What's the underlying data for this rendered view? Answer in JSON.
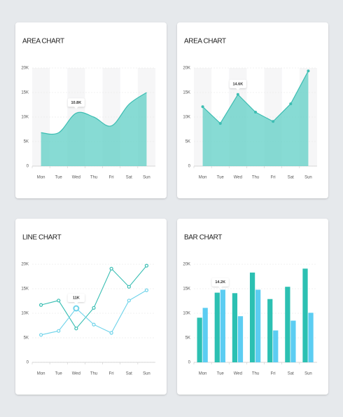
{
  "chart_data": [
    {
      "type": "area",
      "title": "AREA CHART",
      "smooth": true,
      "bands": true,
      "grid": true,
      "categories": [
        "Mon",
        "Tue",
        "Wed",
        "Thu",
        "Fri",
        "Sat",
        "Sun"
      ],
      "values": [
        6800,
        6800,
        10800,
        10000,
        8200,
        12600,
        15000
      ],
      "value_labels": [
        null,
        null,
        "10.8K",
        null,
        null,
        null,
        null
      ],
      "color": "#5fcfc6",
      "ylim": [
        0,
        20000
      ],
      "yticks": [
        0,
        {
          "value": 5000,
          "label": "5K"
        },
        {
          "value": 10000,
          "label": "10K"
        },
        {
          "value": 15000,
          "label": "15K"
        },
        {
          "value": 20000,
          "label": "20K"
        }
      ]
    },
    {
      "type": "area",
      "title": "AREA CHART",
      "smooth": false,
      "markers": true,
      "bands": true,
      "grid": true,
      "categories": [
        "Mon",
        "Tue",
        "Wed",
        "Thu",
        "Fri",
        "Sat",
        "Sun"
      ],
      "values": [
        12100,
        8700,
        14600,
        11000,
        9100,
        12700,
        19400
      ],
      "value_labels": [
        null,
        null,
        "14.6K",
        null,
        null,
        null,
        null
      ],
      "color": "#5fcfc6",
      "ylim": [
        0,
        20000
      ],
      "yticks": [
        0,
        {
          "value": 5000,
          "label": "5K"
        },
        {
          "value": 10000,
          "label": "10K"
        },
        {
          "value": 15000,
          "label": "15K"
        },
        {
          "value": 20000,
          "label": "20K"
        }
      ]
    },
    {
      "type": "line",
      "title": "LINE CHART",
      "grid": true,
      "categories": [
        "Mon",
        "Tue",
        "Wed",
        "Thu",
        "Fri",
        "Sat",
        "Sun"
      ],
      "series": [
        {
          "color": "#36bdb2",
          "values": [
            11700,
            12600,
            6900,
            11100,
            19100,
            15400,
            19700
          ]
        },
        {
          "color": "#6fd3ea",
          "values": [
            5600,
            6400,
            11000,
            7700,
            6000,
            12600,
            14700
          ],
          "value_labels": [
            null,
            null,
            "11K",
            null,
            null,
            null,
            null
          ]
        }
      ],
      "ylim": [
        0,
        20000
      ],
      "yticks": [
        0,
        {
          "value": 5000,
          "label": "5K"
        },
        {
          "value": 10000,
          "label": "10K"
        },
        {
          "value": 15000,
          "label": "15K"
        },
        {
          "value": 20000,
          "label": "20K"
        }
      ]
    },
    {
      "type": "bar",
      "title": "BAR CHART",
      "grid": true,
      "categories": [
        "Mon",
        "Tue",
        "Wed",
        "Thu",
        "Fri",
        "Sat",
        "Sun"
      ],
      "series": [
        {
          "color": "#2cc0b2",
          "values": [
            9100,
            14200,
            14100,
            18300,
            12900,
            15400,
            19100
          ],
          "value_labels": [
            null,
            "14.2K",
            null,
            null,
            null,
            null,
            null
          ]
        },
        {
          "color": "#5ccdf2",
          "values": [
            11100,
            14800,
            9400,
            14800,
            6500,
            8500,
            10100
          ]
        }
      ],
      "ylim": [
        0,
        20000
      ],
      "yticks": [
        0,
        {
          "value": 5000,
          "label": "5K"
        },
        {
          "value": 10000,
          "label": "10K"
        },
        {
          "value": 15000,
          "label": "15K"
        },
        {
          "value": 20000,
          "label": "20K"
        }
      ]
    }
  ]
}
